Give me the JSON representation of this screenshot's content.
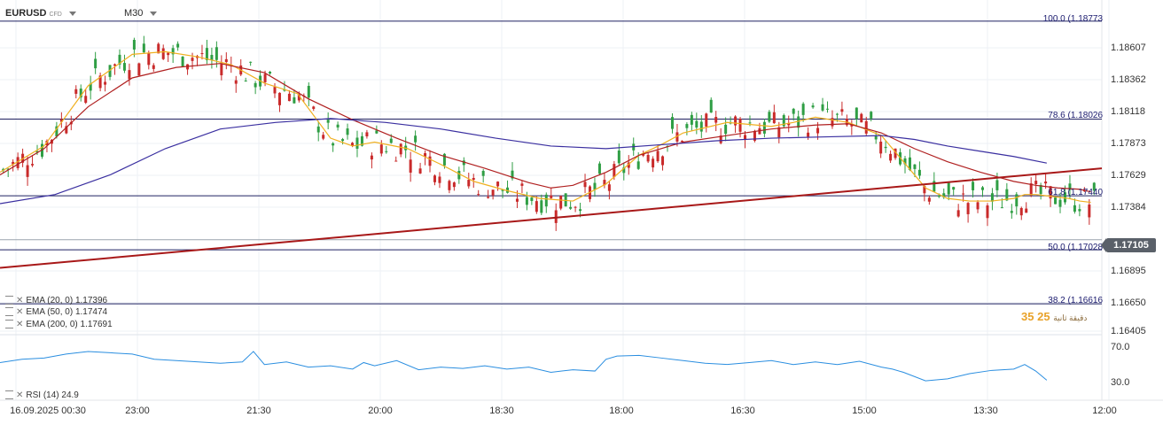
{
  "header": {
    "symbol": "EURUSD",
    "type": "CFD",
    "timeframe": "M30"
  },
  "indicators": [
    {
      "label": "EMA (20, 0)  1.17396",
      "color": "#f0b020"
    },
    {
      "label": "EMA (50, 0)  1.17474",
      "color": "#b02020"
    },
    {
      "label": "EMA (200, 0)  1.17691",
      "color": "#3a2fa0"
    }
  ],
  "rsi": {
    "label": "RSI (14)  24.9",
    "color": "#2a8ee0",
    "levels": [
      "70.0",
      "30.0"
    ]
  },
  "current_price": "1.17105",
  "countdown": {
    "text": "25 35",
    "suffix": "دقيقة ثانية"
  },
  "fib_labels": {
    "f100": "100.0 (1.18773",
    "f786": "78.6 (1.18026",
    "f618": "61.8 (1.17440",
    "f50": "50.0 (1.17028",
    "f382": "38.2 (1.16616"
  },
  "chart_data": {
    "type": "line",
    "title": "",
    "y_ticks": [
      "1.18607",
      "1.18362",
      "1.18118",
      "1.17873",
      "1.17629",
      "1.17384",
      "1.16895",
      "1.16650",
      "1.16405"
    ],
    "x_ticks": [
      "16.09.2025  00:30",
      "23:00",
      "21:30",
      "20:00",
      "18:30",
      "18:00",
      "16:30",
      "15:00",
      "13:30",
      "12:00"
    ],
    "ylim": [
      1.1638,
      1.1884
    ],
    "fib_levels": [
      {
        "name": "100.0",
        "value": 1.18773
      },
      {
        "name": "78.6",
        "value": 1.18026
      },
      {
        "name": "61.8",
        "value": 1.1744
      },
      {
        "name": "50.0",
        "value": 1.17028
      },
      {
        "name": "38.2",
        "value": 1.16616
      }
    ],
    "trendline": [
      {
        "x": 0,
        "y": 1.1689
      },
      {
        "x": 100,
        "y": 1.1765
      }
    ],
    "series": [
      {
        "name": "EMA (20, 0)",
        "color": "#f0b020",
        "x": [
          0,
          4,
          8,
          12,
          15,
          18,
          21,
          24,
          27,
          30,
          32,
          34,
          37,
          40,
          43,
          46,
          49,
          52,
          55,
          58,
          60,
          62,
          66,
          70,
          72,
          74,
          77,
          80,
          82,
          84,
          86,
          88,
          90,
          92,
          93,
          94,
          95,
          96,
          97,
          98,
          99
        ],
        "y": [
          1.1762,
          1.1782,
          1.1828,
          1.1852,
          1.1854,
          1.185,
          1.1844,
          1.183,
          1.1822,
          1.1788,
          1.1782,
          1.1785,
          1.178,
          1.1768,
          1.1755,
          1.1748,
          1.1742,
          1.174,
          1.1753,
          1.1775,
          1.1783,
          1.1792,
          1.18,
          1.1797,
          1.18,
          1.1804,
          1.18,
          1.179,
          1.177,
          1.175,
          1.1742,
          1.174,
          1.174,
          1.1742,
          1.1745,
          1.1745,
          1.1744,
          1.1743,
          1.1742,
          1.174,
          1.1739
        ]
      },
      {
        "name": "EMA (50, 0)",
        "color": "#b02020",
        "x": [
          0,
          4,
          8,
          12,
          16,
          20,
          24,
          28,
          32,
          36,
          40,
          44,
          48,
          50,
          52,
          55,
          58,
          62,
          66,
          70,
          74,
          77,
          80,
          83,
          86,
          89,
          92,
          94,
          96,
          98,
          99
        ],
        "y": [
          1.176,
          1.178,
          1.1812,
          1.1834,
          1.1842,
          1.1845,
          1.1838,
          1.1818,
          1.1802,
          1.1788,
          1.1775,
          1.1765,
          1.1754,
          1.175,
          1.1752,
          1.1762,
          1.1775,
          1.1785,
          1.179,
          1.1795,
          1.1798,
          1.1799,
          1.1792,
          1.178,
          1.177,
          1.1762,
          1.1755,
          1.1752,
          1.175,
          1.1749,
          1.1747
        ]
      },
      {
        "name": "EMA (200, 0)",
        "color": "#3a2fa0",
        "x": [
          0,
          5,
          10,
          15,
          20,
          25,
          30,
          35,
          40,
          45,
          50,
          55,
          60,
          65,
          70,
          75,
          80,
          83,
          86,
          89,
          92,
          95
        ],
        "y": [
          1.1738,
          1.1745,
          1.176,
          1.178,
          1.1795,
          1.18,
          1.1803,
          1.18,
          1.1795,
          1.1788,
          1.1782,
          1.178,
          1.1783,
          1.1786,
          1.1788,
          1.1789,
          1.179,
          1.1787,
          1.1782,
          1.1778,
          1.1774,
          1.1769
        ]
      },
      {
        "name": "RSI (14)",
        "color": "#2a8ee0",
        "x": [
          0,
          2,
          4,
          6,
          8,
          10,
          12,
          14,
          16,
          18,
          20,
          22,
          23,
          24,
          26,
          28,
          30,
          32,
          33,
          34,
          36,
          38,
          40,
          42,
          44,
          46,
          48,
          50,
          52,
          54,
          55,
          56,
          58,
          60,
          62,
          64,
          66,
          68,
          70,
          72,
          74,
          76,
          78,
          80,
          81,
          82,
          84,
          86,
          88,
          90,
          92,
          93,
          94,
          95
        ],
        "y": [
          55,
          60,
          62,
          68,
          72,
          70,
          68,
          60,
          58,
          56,
          54,
          56,
          72,
          52,
          56,
          48,
          50,
          45,
          55,
          50,
          58,
          44,
          48,
          46,
          50,
          45,
          48,
          40,
          44,
          42,
          60,
          65,
          66,
          62,
          58,
          54,
          52,
          55,
          58,
          52,
          56,
          52,
          57,
          48,
          45,
          40,
          27,
          30,
          38,
          43,
          45,
          52,
          42,
          28
        ]
      }
    ]
  }
}
